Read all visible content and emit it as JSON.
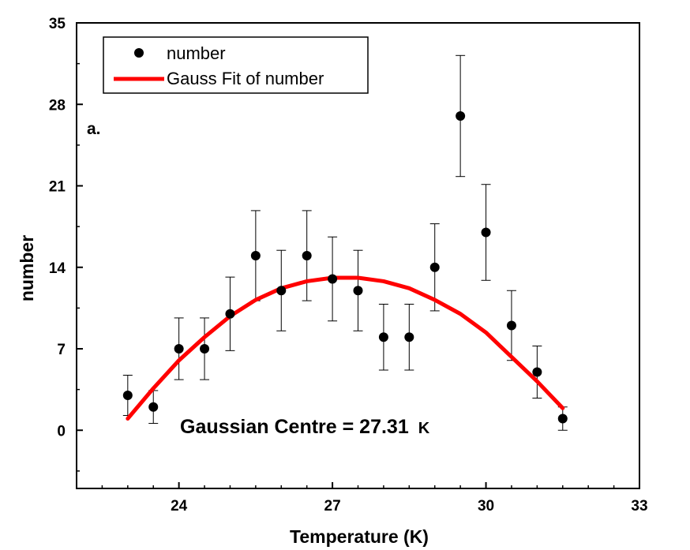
{
  "chart_data": {
    "type": "scatter",
    "xlabel": "Temperature (K)",
    "ylabel": "number",
    "xlim": [
      22,
      33
    ],
    "ylim": [
      -5,
      35
    ],
    "xticks": [
      24,
      27,
      30,
      33
    ],
    "yticks": [
      0,
      7,
      14,
      21,
      28,
      35
    ],
    "grid": false,
    "legend_position": "top-left",
    "panel_label": "a.",
    "annotation": {
      "text": "Gaussian Centre = 27.31",
      "unit": "K"
    },
    "series": [
      {
        "name": "number",
        "marker": "circle",
        "color": "#000000",
        "x": [
          23,
          23.5,
          24,
          24.5,
          25,
          25.5,
          26,
          26.5,
          27,
          27.5,
          28,
          28.5,
          29,
          29.5,
          30,
          30.5,
          31,
          31.5
        ],
        "y": [
          3,
          2,
          7,
          7,
          10,
          15,
          12,
          15,
          13,
          12,
          8,
          8,
          14,
          27,
          17,
          9,
          5,
          1
        ],
        "yerr": [
          1.73,
          1.41,
          2.65,
          2.65,
          3.16,
          3.87,
          3.46,
          3.87,
          3.61,
          3.46,
          2.83,
          2.83,
          3.74,
          5.2,
          4.12,
          3.0,
          2.24,
          1.0
        ]
      },
      {
        "name": "Gauss Fit of number",
        "type": "line",
        "color": "#ff0000",
        "x": [
          23,
          23.5,
          24,
          24.5,
          25,
          25.5,
          26,
          26.5,
          27,
          27.31,
          27.5,
          28,
          28.5,
          29,
          29.5,
          30,
          30.5,
          31,
          31.5
        ],
        "y": [
          1.0,
          3.6,
          6.0,
          8.0,
          9.8,
          11.2,
          12.2,
          12.8,
          13.1,
          13.1,
          13.1,
          12.8,
          12.2,
          11.2,
          10.0,
          8.4,
          6.3,
          4.2,
          1.9
        ]
      }
    ]
  }
}
